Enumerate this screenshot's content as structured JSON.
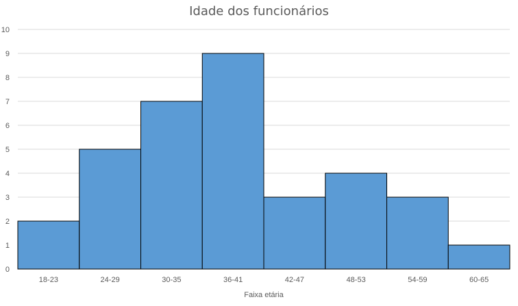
{
  "chart_data": {
    "type": "bar",
    "title": "Idade dos funcionários",
    "xlabel": "Faixa etária",
    "ylabel": "",
    "categories": [
      "18-23",
      "24-29",
      "30-35",
      "36-41",
      "42-47",
      "48-53",
      "54-59",
      "60-65"
    ],
    "values": [
      2,
      5,
      7,
      9,
      3,
      4,
      3,
      1
    ],
    "ylim": [
      0,
      10
    ],
    "yticks": [
      "0",
      "1",
      "2",
      "3",
      "4",
      "5",
      "6",
      "7",
      "8",
      "9",
      "10"
    ],
    "grid": true,
    "legend": "none",
    "colors": {
      "bar_fill": "#5b9bd5",
      "bar_stroke": "#000000",
      "grid": "#d9d9d9",
      "text": "#595959"
    }
  }
}
